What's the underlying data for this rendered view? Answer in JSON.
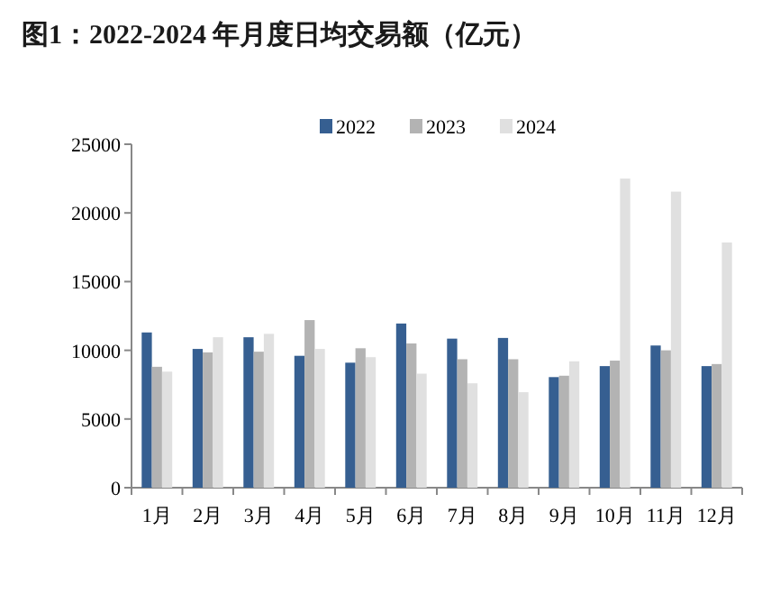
{
  "chart_data": {
    "type": "bar",
    "title": "图1：2022-2024 年月度日均交易额（亿元）",
    "categories": [
      "1月",
      "2月",
      "3月",
      "4月",
      "5月",
      "6月",
      "7月",
      "8月",
      "9月",
      "10月",
      "11月",
      "12月"
    ],
    "series": [
      {
        "name": "2022",
        "color": "#365f91",
        "values": [
          11300,
          10100,
          10950,
          9600,
          9100,
          11950,
          10850,
          10900,
          8050,
          8850,
          10350,
          8850
        ]
      },
      {
        "name": "2023",
        "color": "#b3b3b3",
        "values": [
          8800,
          9850,
          9900,
          12200,
          10150,
          10500,
          9350,
          9350,
          8150,
          9250,
          10000,
          9000
        ]
      },
      {
        "name": "2024",
        "color": "#e0e0e0",
        "values": [
          8450,
          10950,
          11200,
          10100,
          9500,
          8300,
          7600,
          6950,
          9200,
          22500,
          21550,
          17850
        ]
      }
    ],
    "ylim": [
      0,
      25000
    ],
    "yticks": [
      0,
      5000,
      10000,
      15000,
      20000,
      25000
    ],
    "grid": false,
    "legend": "top"
  }
}
